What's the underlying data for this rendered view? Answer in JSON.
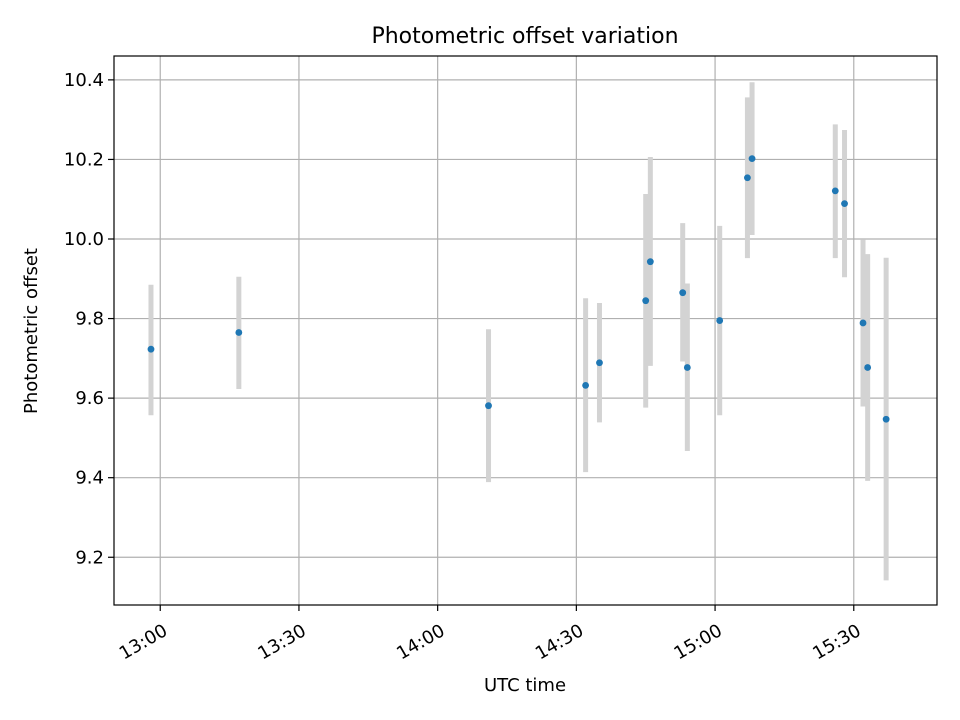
{
  "chart_data": {
    "type": "scatter",
    "title": "Photometric offset variation",
    "xlabel": "UTC time",
    "ylabel": "Photometric offset",
    "x_axis_kind": "time",
    "xlim": [
      "12:50",
      "15:48"
    ],
    "ylim": [
      9.08,
      10.46
    ],
    "x_ticks": [
      "13:00",
      "13:30",
      "14:00",
      "14:30",
      "15:00",
      "15:30"
    ],
    "y_ticks": [
      "9.2",
      "9.4",
      "9.6",
      "9.8",
      "10.0",
      "10.2",
      "10.4"
    ],
    "grid": true,
    "legend": false,
    "point_color": "#1f77b4",
    "errorbar_color": "#d3d3d3",
    "points": [
      {
        "x": "12:58",
        "y": 9.723,
        "y_low": 9.557,
        "y_high": 9.885
      },
      {
        "x": "13:17",
        "y": 9.765,
        "y_low": 9.623,
        "y_high": 9.905
      },
      {
        "x": "14:11",
        "y": 9.581,
        "y_low": 9.389,
        "y_high": 9.773
      },
      {
        "x": "14:32",
        "y": 9.632,
        "y_low": 9.414,
        "y_high": 9.851
      },
      {
        "x": "14:35",
        "y": 9.689,
        "y_low": 9.539,
        "y_high": 9.839
      },
      {
        "x": "14:45",
        "y": 9.845,
        "y_low": 9.576,
        "y_high": 10.113
      },
      {
        "x": "14:46",
        "y": 9.943,
        "y_low": 9.681,
        "y_high": 10.206
      },
      {
        "x": "14:53",
        "y": 9.865,
        "y_low": 9.692,
        "y_high": 10.04
      },
      {
        "x": "14:54",
        "y": 9.677,
        "y_low": 9.467,
        "y_high": 9.888
      },
      {
        "x": "15:01",
        "y": 9.795,
        "y_low": 9.557,
        "y_high": 10.033
      },
      {
        "x": "15:07",
        "y": 10.154,
        "y_low": 9.952,
        "y_high": 10.356
      },
      {
        "x": "15:08",
        "y": 10.202,
        "y_low": 10.01,
        "y_high": 10.394
      },
      {
        "x": "15:26",
        "y": 10.121,
        "y_low": 9.952,
        "y_high": 10.288
      },
      {
        "x": "15:28",
        "y": 10.089,
        "y_low": 9.904,
        "y_high": 10.274
      },
      {
        "x": "15:32",
        "y": 9.789,
        "y_low": 9.579,
        "y_high": 9.998
      },
      {
        "x": "15:33",
        "y": 9.677,
        "y_low": 9.392,
        "y_high": 9.962
      },
      {
        "x": "15:37",
        "y": 9.547,
        "y_low": 9.142,
        "y_high": 9.953
      }
    ]
  }
}
